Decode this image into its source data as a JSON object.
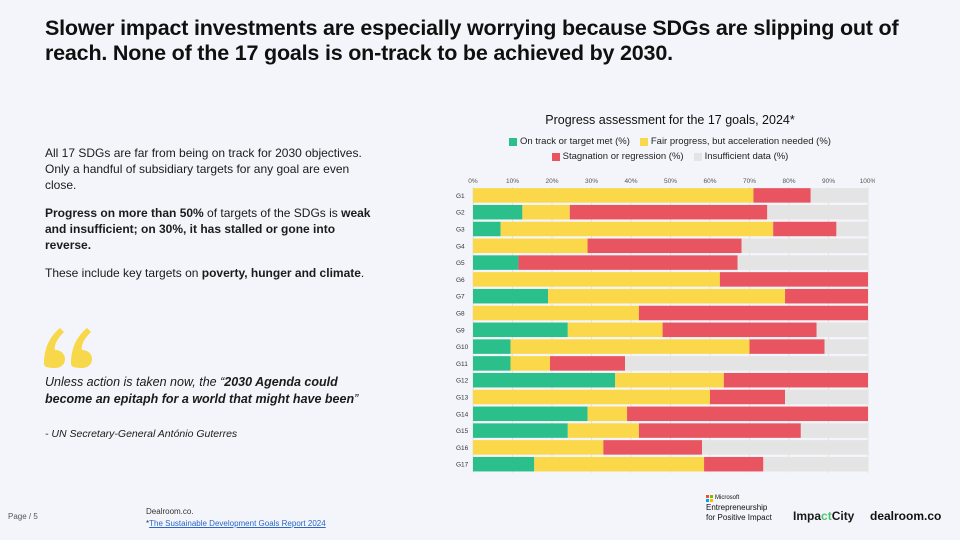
{
  "headline": "Slower impact investments are especially worrying because SDGs are slipping out of reach. None of the 17 goals is on-track to be achieved by 2030.",
  "left_text": {
    "p1": "All 17 SDGs are far from being on track for 2030 objectives. Only a handful of subsidiary targets for any goal are even close.",
    "p2_bold1": "Progress on more than 50%",
    "p2_mid": " of targets of the SDGs is ",
    "p2_bold2": "weak and insufficient; on 30%, it has stalled or gone into reverse.",
    "p3_start": "These include key targets on ",
    "p3_bold": "poverty, hunger and climate",
    "p3_end": "."
  },
  "quote": {
    "lead": "Unless action is taken now, the “",
    "bold": "2030 Agenda could become an epitaph for a world that might have been",
    "end": "”",
    "attribution": "- UN Secretary-General António Guterres"
  },
  "footer": {
    "page": "Page / 5",
    "source_name": "Dealroom.co.",
    "source_mark": "*",
    "source_link": "The Sustainable Development Goals Report 2024"
  },
  "logos": {
    "microsoft": "Microsoft",
    "ms_line1": "Entrepreneurship",
    "ms_line2": "for Positive Impact",
    "impact_a": "Impa",
    "impact_b": "ct",
    "impact_c": "City",
    "dealroom": "dealroom.co"
  },
  "colors": {
    "on_track": "#2bbf8c",
    "fair": "#fbd84a",
    "stagnation": "#e8545f",
    "insufficient": "#e4e4e4",
    "quote_mark": "#f7d84a"
  },
  "chart_data": {
    "type": "bar",
    "orientation": "horizontal",
    "stacked": true,
    "title": "Progress assessment for the 17 goals, 2024*",
    "xlim": [
      0,
      100
    ],
    "x_ticks": [
      "0%",
      "10%",
      "20%",
      "30%",
      "40%",
      "50%",
      "60%",
      "70%",
      "80%",
      "90%",
      "100%"
    ],
    "categories": [
      "G1",
      "G2",
      "G3",
      "G4",
      "G5",
      "G6",
      "G7",
      "G8",
      "G9",
      "G10",
      "G11",
      "G12",
      "G13",
      "G14",
      "G15",
      "G16",
      "G17"
    ],
    "series": [
      {
        "name": "On track or target met (%)",
        "values": [
          0,
          12.5,
          7,
          0,
          11.5,
          0,
          19,
          0,
          24,
          9.5,
          9.5,
          36,
          0,
          29,
          24,
          0,
          15.5
        ]
      },
      {
        "name": "Fair progress, but acceleration needed (%)",
        "values": [
          71,
          12,
          69,
          29,
          0,
          62.5,
          60,
          42,
          24,
          60.5,
          10,
          27.5,
          60,
          10,
          18,
          33,
          43
        ]
      },
      {
        "name": "Stagnation or regression (%)",
        "values": [
          14.5,
          50,
          16,
          39,
          55.5,
          37.5,
          21,
          58,
          39,
          19,
          19,
          36.5,
          19,
          61,
          41,
          25,
          15
        ]
      },
      {
        "name": "Insufficient data (%)",
        "values": [
          14.5,
          25.5,
          8,
          32,
          33,
          0,
          0,
          0,
          13,
          11,
          61.5,
          0,
          21,
          0,
          17,
          42,
          26.5
        ]
      }
    ],
    "legend_position": "top-center",
    "grid": true
  }
}
